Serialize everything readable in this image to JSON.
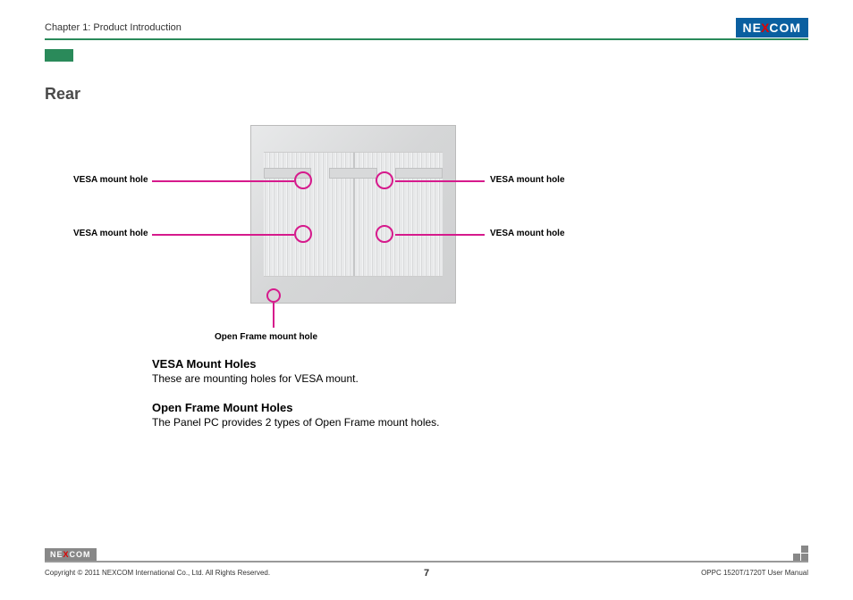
{
  "header": {
    "chapter": "Chapter 1: Product Introduction",
    "logo_pre": "NE",
    "logo_x": "X",
    "logo_post": "COM"
  },
  "section": {
    "title": "Rear"
  },
  "diagram": {
    "labels": {
      "vesa_tl": "VESA mount hole",
      "vesa_tr": "VESA mount hole",
      "vesa_bl": "VESA mount hole",
      "vesa_br": "VESA mount hole",
      "open_frame": "Open Frame mount hole"
    },
    "colors": {
      "callout": "#d61a8c",
      "panel_light": "#e8e9ea",
      "panel_dark": "#cfd0d1",
      "rule_green": "#2a8a5a"
    }
  },
  "body": {
    "sub1_head": "VESA Mount Holes",
    "sub1_desc": "These are mounting holes for VESA mount.",
    "sub2_head": "Open Frame Mount Holes",
    "sub2_desc": "The Panel PC provides 2 types of Open Frame mount holes."
  },
  "footer": {
    "logo_pre": "NE",
    "logo_x": "X",
    "logo_post": "COM",
    "copyright": "Copyright © 2011 NEXCOM International Co., Ltd. All Rights Reserved.",
    "page": "7",
    "manual": "OPPC 1520T/1720T User Manual"
  }
}
